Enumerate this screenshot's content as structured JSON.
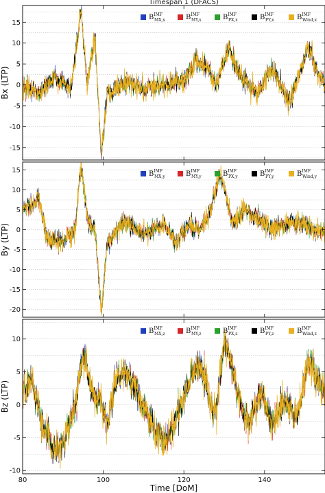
{
  "title": "Timespan 1  (DFACS)",
  "chart_data": [
    {
      "type": "line",
      "ylabel": "Bx (LTP)",
      "xlim": [
        80,
        155
      ],
      "ylim": [
        -18,
        19
      ],
      "yticks": [
        -15,
        -10,
        -5,
        0,
        5,
        10,
        15
      ],
      "grid": true,
      "legend_position": "top-right",
      "legend": [
        {
          "main": "B",
          "sup": "IMF",
          "sub": "MX,x"
        },
        {
          "main": "B",
          "sup": "IMF",
          "sub": "MY,x"
        },
        {
          "main": "B",
          "sup": "IMF",
          "sub": "PX,x"
        },
        {
          "main": "B",
          "sup": "IMF",
          "sub": "PY,x"
        },
        {
          "main": "B",
          "sup": "IMF",
          "sub": "Wind,x"
        }
      ],
      "colors": [
        "#1f3fbf",
        "#d62728",
        "#2ca02c",
        "#000000",
        "#e8b01e"
      ],
      "features": [
        [
          80,
          0
        ],
        [
          84,
          -2
        ],
        [
          88,
          2
        ],
        [
          92,
          -1
        ],
        [
          94.5,
          18
        ],
        [
          96,
          0
        ],
        [
          98,
          12
        ],
        [
          99.5,
          -17
        ],
        [
          101,
          -2
        ],
        [
          106,
          1
        ],
        [
          110,
          -1
        ],
        [
          115,
          0
        ],
        [
          120,
          1
        ],
        [
          123,
          6
        ],
        [
          126,
          4
        ],
        [
          128,
          0
        ],
        [
          131,
          9
        ],
        [
          134,
          2
        ],
        [
          138,
          -2
        ],
        [
          142,
          4
        ],
        [
          146,
          -4
        ],
        [
          148,
          1
        ],
        [
          151,
          9
        ],
        [
          153,
          3
        ],
        [
          155,
          0
        ]
      ]
    },
    {
      "type": "line",
      "ylabel": "By (LTP)",
      "xlim": [
        80,
        155
      ],
      "ylim": [
        -22,
        17
      ],
      "yticks": [
        -20,
        -15,
        -10,
        -5,
        0,
        5,
        10,
        15
      ],
      "grid": true,
      "legend_position": "top-right",
      "legend": [
        {
          "main": "B",
          "sup": "IMF",
          "sub": "MX,y"
        },
        {
          "main": "B",
          "sup": "IMF",
          "sub": "MY,y"
        },
        {
          "main": "B",
          "sup": "IMF",
          "sub": "PX,y"
        },
        {
          "main": "B",
          "sup": "IMF",
          "sub": "PY,y"
        },
        {
          "main": "B",
          "sup": "IMF",
          "sub": "Wind,y"
        }
      ],
      "colors": [
        "#1f3fbf",
        "#d62728",
        "#2ca02c",
        "#000000",
        "#e8b01e"
      ],
      "features": [
        [
          80,
          5
        ],
        [
          82,
          6
        ],
        [
          84,
          8
        ],
        [
          86,
          -2
        ],
        [
          90,
          -3
        ],
        [
          93,
          0
        ],
        [
          94.5,
          17
        ],
        [
          96,
          3
        ],
        [
          98,
          0
        ],
        [
          99.5,
          -21
        ],
        [
          101,
          -3
        ],
        [
          105,
          2
        ],
        [
          110,
          -1
        ],
        [
          115,
          1
        ],
        [
          118,
          -3
        ],
        [
          121,
          1
        ],
        [
          124,
          0
        ],
        [
          126,
          3
        ],
        [
          129,
          14
        ],
        [
          132,
          2
        ],
        [
          135,
          5
        ],
        [
          138,
          3
        ],
        [
          142,
          0
        ],
        [
          146,
          2
        ],
        [
          150,
          1
        ],
        [
          155,
          -1
        ]
      ]
    },
    {
      "type": "line",
      "ylabel": "Bz (LTP)",
      "xlabel": "Time  [DoM]",
      "xlim": [
        80,
        155
      ],
      "ylim": [
        -10.5,
        13
      ],
      "xticks": [
        80,
        100,
        120,
        140
      ],
      "yticks": [
        -10,
        -5,
        0,
        5,
        10
      ],
      "grid": true,
      "legend_position": "top-right",
      "legend": [
        {
          "main": "B",
          "sup": "IMF",
          "sub": "MX,z"
        },
        {
          "main": "B",
          "sup": "IMF",
          "sub": "MY,z"
        },
        {
          "main": "B",
          "sup": "IMF",
          "sub": "PX,z"
        },
        {
          "main": "B",
          "sup": "IMF",
          "sub": "PY,z"
        },
        {
          "main": "B",
          "sup": "IMF",
          "sub": "Wind,z"
        }
      ],
      "colors": [
        "#1f3fbf",
        "#d62728",
        "#2ca02c",
        "#000000",
        "#e8b01e"
      ],
      "features": [
        [
          80,
          2
        ],
        [
          82,
          4
        ],
        [
          85,
          -3
        ],
        [
          88,
          -7
        ],
        [
          90,
          -6
        ],
        [
          93,
          0
        ],
        [
          95,
          8
        ],
        [
          97,
          2
        ],
        [
          99,
          1
        ],
        [
          101,
          -3
        ],
        [
          103,
          4
        ],
        [
          106,
          5
        ],
        [
          109,
          1
        ],
        [
          112,
          -3
        ],
        [
          115,
          -6
        ],
        [
          118,
          -2
        ],
        [
          120,
          1
        ],
        [
          122,
          5
        ],
        [
          124,
          6
        ],
        [
          126,
          2
        ],
        [
          128,
          -2
        ],
        [
          130,
          10
        ],
        [
          132,
          6
        ],
        [
          134,
          0
        ],
        [
          136,
          -3
        ],
        [
          139,
          2
        ],
        [
          142,
          -3
        ],
        [
          145,
          1
        ],
        [
          148,
          -2
        ],
        [
          151,
          7
        ],
        [
          153,
          4
        ],
        [
          155,
          1
        ]
      ]
    }
  ]
}
